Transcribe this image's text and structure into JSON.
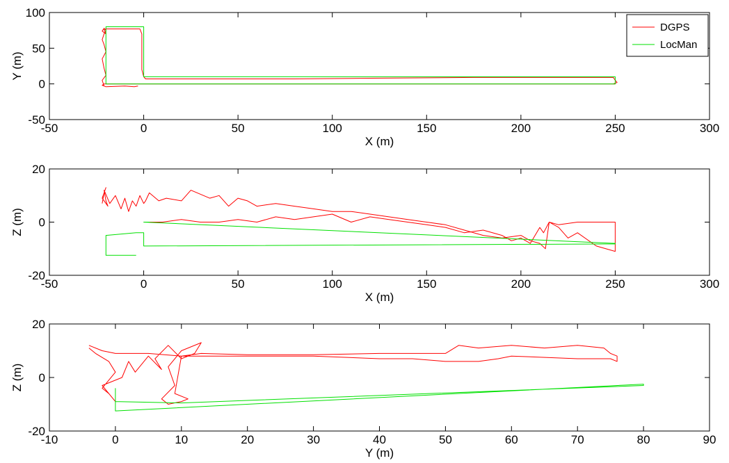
{
  "chart_data": [
    {
      "type": "line",
      "title": "",
      "xlabel": "X (m)",
      "ylabel": "Y (m)",
      "xlim": [
        -50,
        300
      ],
      "ylim": [
        -50,
        100
      ],
      "xticks": [
        -50,
        0,
        50,
        100,
        150,
        200,
        250,
        300
      ],
      "yticks": [
        -50,
        0,
        50,
        100
      ],
      "grid": false,
      "legend": {
        "position": "top-right",
        "entries": [
          "DGPS",
          "LocMan"
        ]
      },
      "series": [
        {
          "name": "DGPS",
          "color": "#ff0000",
          "x": [
            -21,
            -22,
            -20,
            -21,
            -22,
            -20,
            -21,
            -22,
            -21,
            -20,
            -21,
            -22,
            -20,
            -21,
            -20,
            -10,
            -2,
            -1,
            -1,
            -1,
            0,
            1,
            40,
            80,
            120,
            175,
            200,
            230,
            249,
            250,
            251,
            249,
            250,
            200,
            150,
            100,
            50,
            20,
            0,
            -15,
            -20,
            -21,
            -22,
            -20,
            -10,
            -5,
            -3
          ],
          "y": [
            -3,
            5,
            12,
            22,
            35,
            45,
            55,
            62,
            70,
            75,
            78,
            74,
            70,
            76,
            77,
            77,
            77,
            70,
            40,
            20,
            10,
            7,
            7,
            7,
            8,
            9,
            9,
            9,
            9,
            5,
            2,
            0,
            0,
            0,
            0,
            0,
            0,
            0,
            0,
            0,
            0,
            0,
            -2,
            -4,
            -3,
            -4,
            -3
          ]
        },
        {
          "name": "LocMan",
          "color": "#00e000",
          "x": [
            -20,
            -20,
            0,
            0,
            0,
            50,
            100,
            150,
            200,
            250,
            250,
            250,
            200,
            150,
            100,
            50,
            0,
            -20
          ],
          "y": [
            0,
            80,
            80,
            30,
            10,
            10,
            10,
            10,
            10,
            10,
            5,
            0,
            0,
            0,
            0,
            0,
            0,
            0
          ]
        }
      ]
    },
    {
      "type": "line",
      "title": "",
      "xlabel": "X (m)",
      "ylabel": "Z (m)",
      "xlim": [
        -50,
        300
      ],
      "ylim": [
        -20,
        20
      ],
      "xticks": [
        -50,
        0,
        50,
        100,
        150,
        200,
        250,
        300
      ],
      "yticks": [
        -20,
        0,
        20
      ],
      "grid": false,
      "series": [
        {
          "name": "DGPS",
          "color": "#ff0000",
          "x": [
            -22,
            -21,
            -20,
            -22,
            -19,
            -20,
            -21,
            -18,
            -15,
            -12,
            -10,
            -8,
            -6,
            -4,
            -2,
            0,
            1,
            3,
            8,
            12,
            20,
            25,
            35,
            40,
            45,
            50,
            55,
            60,
            70,
            80,
            90,
            100,
            110,
            120,
            130,
            140,
            150,
            160,
            170,
            180,
            190,
            200,
            205,
            210,
            213,
            215,
            220,
            225,
            230,
            240,
            250,
            250,
            245,
            240,
            230,
            220,
            215,
            212,
            210,
            205,
            200,
            195,
            190,
            180,
            170,
            160,
            150,
            140,
            130,
            120,
            110,
            100,
            90,
            80,
            70,
            60,
            50,
            40,
            30,
            20,
            10,
            3
          ],
          "y": [
            7,
            11,
            13,
            9,
            6,
            8,
            12,
            7,
            10,
            5,
            9,
            4,
            8,
            6,
            10,
            7,
            8,
            11,
            8,
            9,
            8,
            12,
            9,
            10,
            6,
            9,
            8,
            6,
            7,
            6,
            5,
            4,
            4,
            3,
            2,
            1,
            0,
            -1,
            -3,
            -5,
            -6,
            -5,
            -7,
            -8,
            -10,
            0,
            -2,
            -6,
            -4,
            -9,
            -11,
            0,
            0,
            0,
            0,
            -1,
            0,
            -4,
            -2,
            -8,
            -6,
            -7,
            -5,
            -3,
            -4,
            -2,
            -1,
            0,
            1,
            2,
            0,
            3,
            2,
            1,
            2,
            0,
            1,
            0,
            0,
            1,
            0,
            0
          ]
        },
        {
          "name": "LocMan",
          "color": "#00e000",
          "x": [
            -4,
            -20,
            -20,
            -20,
            -4,
            -2,
            0,
            0,
            250,
            250,
            0,
            3
          ],
          "y": [
            -12.5,
            -12.5,
            -5,
            -5,
            -4,
            -4,
            -4,
            -9,
            -8.2,
            -8,
            0,
            0
          ]
        }
      ]
    },
    {
      "type": "line",
      "title": "",
      "xlabel": "Y (m)",
      "ylabel": "Z (m)",
      "xlim": [
        -10,
        90
      ],
      "ylim": [
        -20,
        20
      ],
      "xticks": [
        -10,
        0,
        10,
        20,
        30,
        40,
        50,
        60,
        70,
        80,
        90
      ],
      "yticks": [
        -20,
        0,
        20
      ],
      "grid": false,
      "series": [
        {
          "name": "DGPS",
          "color": "#ff0000",
          "x": [
            -4,
            -3,
            -1,
            0,
            -2,
            -1,
            0,
            -2,
            1,
            2,
            3,
            5,
            7,
            6,
            8,
            10,
            12,
            13,
            10,
            8,
            9,
            7,
            8,
            10,
            11,
            9,
            10,
            13,
            20,
            30,
            40,
            50,
            52,
            55,
            60,
            65,
            70,
            74,
            75,
            76,
            76,
            75,
            70,
            60,
            58,
            55,
            50,
            45,
            40,
            30,
            20,
            10,
            5,
            0,
            -2,
            -4
          ],
          "y": [
            11,
            9,
            6,
            2,
            -4,
            -6,
            -9,
            -3,
            0,
            6,
            2,
            8,
            3,
            7,
            12,
            7,
            9,
            13,
            10,
            4,
            -3,
            -8,
            -10,
            -9,
            -8,
            -6,
            8,
            9,
            8.5,
            8.5,
            9,
            9,
            12,
            11,
            12,
            11,
            12,
            11,
            9,
            8,
            6,
            7,
            7,
            8,
            7,
            6,
            6,
            7,
            7,
            8,
            8,
            8,
            9,
            9,
            10,
            12
          ]
        },
        {
          "name": "LocMan",
          "color": "#00e000",
          "x": [
            0,
            0,
            10,
            80,
            80,
            0,
            0
          ],
          "y": [
            -12.5,
            -9,
            -9.5,
            -3,
            -2.5,
            -12.5,
            -4
          ]
        }
      ]
    }
  ]
}
